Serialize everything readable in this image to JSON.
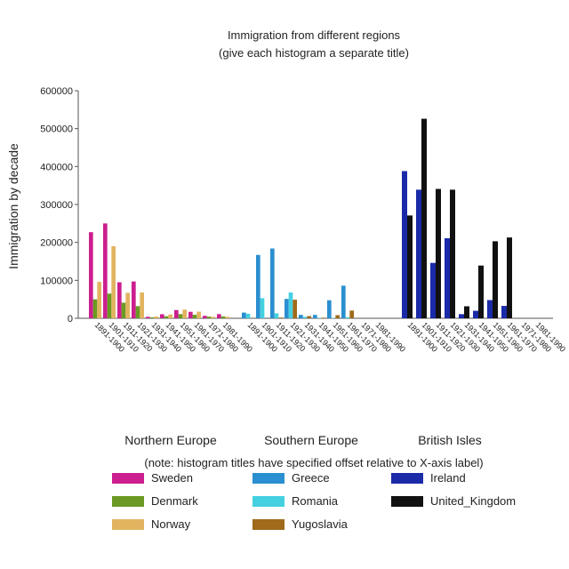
{
  "chart_data": {
    "type": "bar",
    "title": "Immigration from different regions",
    "subtitle": "(give each histogram a separate title)",
    "ylabel": "Immigration by decade",
    "xlabel": "",
    "ylim": [
      0,
      600000
    ],
    "yticks": [
      "0",
      "100000",
      "200000",
      "300000",
      "400000",
      "500000",
      "600000"
    ],
    "grid": false,
    "note": "(note: histogram titles have specified offset relative to X-axis label)",
    "groups": [
      {
        "title": "Northern Europe",
        "categories": [
          "1891-1900",
          "1901-1910",
          "1911-1920",
          "1921-1930",
          "1931-1940",
          "1941-1950",
          "1951-1960",
          "1961-1970",
          "1971-1980",
          "1981-1990"
        ],
        "series": [
          {
            "name": "Sweden",
            "color": "#cc1f8f",
            "values": [
              227000,
              250000,
              95000,
              97000,
              3900,
              10700,
              21700,
              17100,
              6500,
              11000
            ]
          },
          {
            "name": "Denmark",
            "color": "#6a9a23",
            "values": [
              50000,
              65000,
              41000,
              32000,
              2600,
              5400,
              10900,
              9200,
              4400,
              5000
            ]
          },
          {
            "name": "Norway",
            "color": "#e2b460",
            "values": [
              96000,
              190000,
              67000,
              68000,
              4700,
              10100,
              22900,
              17400,
              4000,
              4000
            ]
          }
        ]
      },
      {
        "title": "Southern Europe",
        "categories": [
          "1891-1900",
          "1901-1910",
          "1911-1920",
          "1921-1930",
          "1931-1940",
          "1941-1950",
          "1951-1960",
          "1961-1970",
          "1971-1980",
          "1981-1990"
        ],
        "series": [
          {
            "name": "Greece",
            "color": "#2a8fd0",
            "values": [
              15000,
              167000,
              184000,
              51000,
              9100,
              8900,
              47600,
              85900,
              0,
              0
            ]
          },
          {
            "name": "Romania",
            "color": "#44d0e0",
            "values": [
              12000,
              53000,
              13000,
              68000,
              3900,
              1100,
              1000,
              2500,
              0,
              0
            ]
          },
          {
            "name": "Yugoslavia",
            "color": "#a06a1a",
            "values": [
              0,
              0,
              1900,
              49000,
              5800,
              1600,
              8200,
              20400,
              0,
              0
            ]
          }
        ]
      },
      {
        "title": "British Isles",
        "categories": [
          "1891-1900",
          "1901-1910",
          "1911-1920",
          "1921-1930",
          "1931-1940",
          "1941-1950",
          "1951-1960",
          "1961-1970",
          "1971-1980",
          "1981-1990"
        ],
        "series": [
          {
            "name": "Ireland",
            "color": "#1b2aa8",
            "values": [
              388000,
              339000,
              146000,
              211000,
              10900,
              19800,
              48000,
              32600,
              0,
              0
            ]
          },
          {
            "name": "United_Kingdom",
            "color": "#111111",
            "values": [
              271000,
              526000,
              341000,
              339000,
              31600,
              139000,
              203000,
              213000,
              0,
              0
            ]
          }
        ]
      }
    ]
  }
}
